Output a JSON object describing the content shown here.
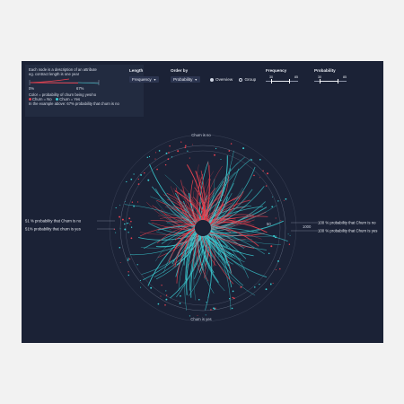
{
  "legend": {
    "line1": "Each node is a description of an attribute",
    "line2": "eg. contract length is one year",
    "pct_start": "0%",
    "pct_end": "67%",
    "color_title": "Color = probability of churn being yes/no",
    "churn_no": "Churn = No",
    "churn_yes": "Churn = Yes",
    "example": "In the example above: 67% probability that churn is no",
    "example_fraction": 0.67
  },
  "controls": {
    "length": {
      "label": "Length",
      "value": "Frequency"
    },
    "order": {
      "label": "Order by",
      "value": "Probability"
    },
    "view": {
      "overview": "Overview",
      "group": "Group",
      "selected": "Overview"
    },
    "frequency": {
      "label": "Frequency",
      "min": "30",
      "max": "85"
    },
    "probability": {
      "label": "Probability",
      "min": "30",
      "max": "85"
    }
  },
  "viz": {
    "top_label": "Churn is no",
    "bottom_label": "Churn is yes",
    "left_no": "51 % probability that Churn is no",
    "left_yes": "51% probability that churn is yes",
    "right_no": "100 % probability that Churn is no",
    "right_yes": "100 % probability that Churn is yes",
    "scale_50": "50",
    "scale_1000": "1000"
  },
  "colors": {
    "background": "#1b2236",
    "churn_no": "#e8414f",
    "churn_yes": "#3bd0d6",
    "text": "#e6e9f0"
  }
}
